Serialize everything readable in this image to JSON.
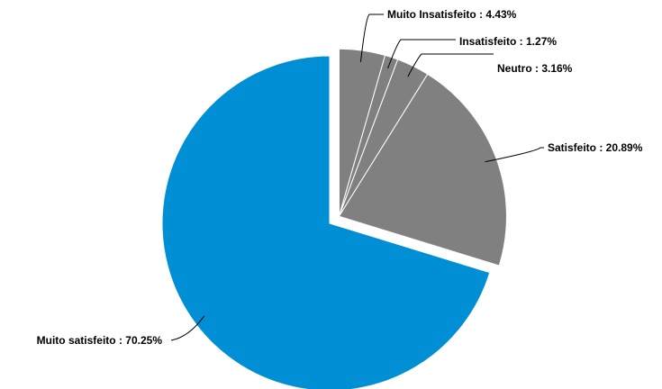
{
  "chart_data": {
    "type": "pie",
    "categories": [
      "Muito Insatisfeito",
      "Insatisfeito",
      "Neutro",
      "Satisfeito",
      "Muito satisfeito"
    ],
    "values": [
      4.43,
      1.27,
      3.16,
      20.89,
      70.25
    ],
    "labels": [
      "Muito Insatisfeito : 4.43%",
      "Insatisfeito : 1.27%",
      "Neutro : 3.16%",
      "Satisfeito : 20.89%",
      "Muito satisfeito : 70.25%"
    ],
    "colors": [
      "#808080",
      "#808080",
      "#808080",
      "#808080",
      "#008fd5"
    ],
    "exploded": [
      true,
      true,
      true,
      true,
      false
    ],
    "start": "12 o'clock",
    "direction": "clockwise",
    "legend": "none"
  }
}
